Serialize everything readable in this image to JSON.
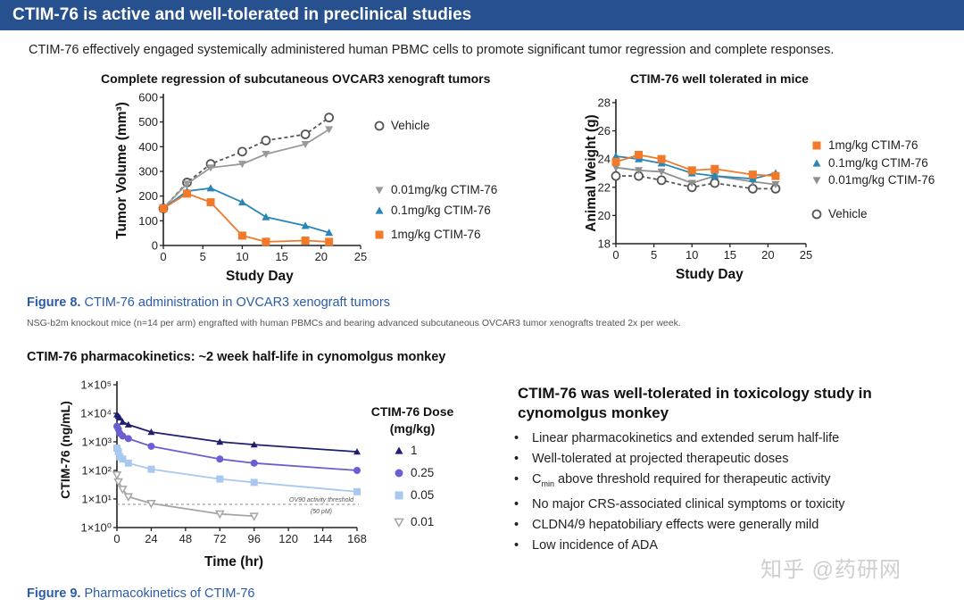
{
  "header": {
    "title": "CTIM-76 is active and well-tolerated in preclinical studies"
  },
  "intro": "CTIM-76 effectively engaged systemically administered human PBMC cells to promote significant tumor regression and complete responses.",
  "figure8": {
    "label": "Figure 8.",
    "caption": " CTIM-76 administration in OVCAR3 xenograft tumors",
    "note": "NSG-b2m knockout mice (n=14 per arm) engrafted with human PBMCs and bearing advanced subcutaneous OVCAR3 tumor xenografts treated 2x per week."
  },
  "pk_section_title": "CTIM-76 pharmacokinetics: ~2 week half-life in cynomolgus monkey",
  "tox": {
    "title": "CTIM-76 was well-tolerated in toxicology study in cynomolgus monkey",
    "bullets": [
      {
        "text": "Linear pharmacokinetics and extended serum half-life"
      },
      {
        "text": "Well-tolerated at projected therapeutic doses"
      },
      {
        "pre": "C",
        "sub": "min",
        "text": " above threshold required for therapeutic activity"
      },
      {
        "text": "No major CRS-associated clinical symptoms or toxicity"
      },
      {
        "text": "CLDN4/9 hepatobiliary effects were generally mild"
      },
      {
        "text": "Low incidence of ADA"
      }
    ]
  },
  "figure9": {
    "label": "Figure 9.",
    "caption": " Pharmacokinetics of CTIM-76"
  },
  "watermark": "知乎 @药研网",
  "chart_data": [
    {
      "type": "line",
      "title": "Complete regression of subcutaneous OVCAR3 xenograft tumors",
      "xlabel": "Study Day",
      "ylabel": "Tumor Volume (mm³)",
      "xlim": [
        0,
        25
      ],
      "ylim": [
        0,
        600
      ],
      "xticks": [
        "0",
        "5",
        "10",
        "15",
        "20",
        "25"
      ],
      "yticks": [
        "0",
        "100",
        "200",
        "300",
        "400",
        "500",
        "600"
      ],
      "legend_position": "right",
      "x": [
        0,
        3,
        6,
        10,
        13,
        18,
        21
      ],
      "series": [
        {
          "name": "Vehicle",
          "color": "#555555",
          "marker": "circle-open",
          "dashed": true,
          "values": [
            150,
            255,
            330,
            380,
            425,
            450,
            518
          ]
        },
        {
          "name": "0.01mg/kg CTIM-76",
          "color": "#9a9a9a",
          "marker": "tri-down",
          "dashed": false,
          "values": [
            150,
            250,
            315,
            330,
            370,
            410,
            470
          ]
        },
        {
          "name": "0.1mg/kg CTIM-76",
          "color": "#2b86b8",
          "marker": "tri-up",
          "dashed": false,
          "values": [
            150,
            220,
            232,
            175,
            115,
            80,
            52
          ]
        },
        {
          "name": "1mg/kg CTIM-76",
          "color": "#f07a2a",
          "marker": "square",
          "dashed": false,
          "values": [
            150,
            210,
            175,
            40,
            15,
            20,
            15
          ]
        }
      ]
    },
    {
      "type": "line",
      "title": "CTIM-76 well tolerated in mice",
      "xlabel": "Study Day",
      "ylabel": "Animal Weight (g)",
      "xlim": [
        0,
        25
      ],
      "ylim": [
        18,
        28
      ],
      "xticks": [
        "0",
        "5",
        "10",
        "15",
        "20",
        "25"
      ],
      "yticks": [
        "18",
        "20",
        "22",
        "24",
        "26",
        "28"
      ],
      "legend_position": "right",
      "x": [
        0,
        3,
        6,
        10,
        13,
        18,
        21
      ],
      "series": [
        {
          "name": "Vehicle",
          "color": "#555555",
          "marker": "circle-open",
          "dashed": true,
          "values": [
            22.8,
            22.8,
            22.5,
            22.0,
            22.3,
            21.9,
            21.9
          ]
        },
        {
          "name": "0.01mg/kg CTIM-76",
          "color": "#8f8f8f",
          "marker": "tri-down",
          "dashed": false,
          "values": [
            23.4,
            23.2,
            23.1,
            22.3,
            22.8,
            22.4,
            22.2
          ]
        },
        {
          "name": "0.1mg/kg CTIM-76",
          "color": "#2b86b8",
          "marker": "tri-up",
          "dashed": false,
          "values": [
            24.2,
            24.0,
            23.7,
            23.0,
            22.8,
            22.6,
            23.0
          ]
        },
        {
          "name": "1mg/kg CTIM-76",
          "color": "#f07a2a",
          "marker": "square",
          "dashed": false,
          "values": [
            23.8,
            24.3,
            24.0,
            23.2,
            23.3,
            22.9,
            22.8
          ]
        }
      ]
    },
    {
      "type": "line",
      "title": "",
      "xlabel": "Time (hr)",
      "ylabel": "CTIM-76 (ng/mL)",
      "xlim": [
        0,
        168
      ],
      "ylim": [
        1,
        100000
      ],
      "yscale": "log",
      "xticks": [
        "0",
        "24",
        "48",
        "72",
        "96",
        "120",
        "144",
        "168"
      ],
      "yticks": [
        "1×10⁰",
        "1×10¹",
        "1×10²",
        "1×10³",
        "1×10⁴",
        "1×10⁵"
      ],
      "legend_title": "CTIM-76 Dose (mg/kg)",
      "legend_position": "right",
      "threshold": {
        "value": 6.5,
        "label": "OV90 activity threshold",
        "sublabel": "(50 pM)"
      },
      "series": [
        {
          "name": "1",
          "color": "#1f1f6e",
          "marker": "tri-up",
          "dashed": false,
          "x": [
            0,
            1,
            2,
            4,
            8,
            24,
            72,
            96,
            168
          ],
          "values": [
            9000,
            8000,
            7000,
            5000,
            4000,
            2200,
            1000,
            800,
            450
          ]
        },
        {
          "name": "0.25",
          "color": "#6a5fd0",
          "marker": "circle",
          "dashed": false,
          "x": [
            0,
            1,
            2,
            4,
            8,
            24,
            72,
            96,
            168
          ],
          "values": [
            3500,
            2800,
            2000,
            1600,
            1300,
            700,
            250,
            180,
            100
          ]
        },
        {
          "name": "0.05",
          "color": "#a8c8f0",
          "marker": "square",
          "dashed": false,
          "x": [
            0,
            1,
            2,
            4,
            8,
            24,
            72,
            96,
            168
          ],
          "values": [
            600,
            450,
            300,
            250,
            180,
            110,
            50,
            38,
            18
          ]
        },
        {
          "name": "0.01",
          "color": "#a5a5a5",
          "marker": "tri-down-open",
          "dashed": false,
          "x": [
            0,
            1,
            4,
            8,
            24,
            72,
            96
          ],
          "values": [
            70,
            40,
            22,
            12,
            7,
            3,
            2.5
          ]
        }
      ]
    }
  ]
}
